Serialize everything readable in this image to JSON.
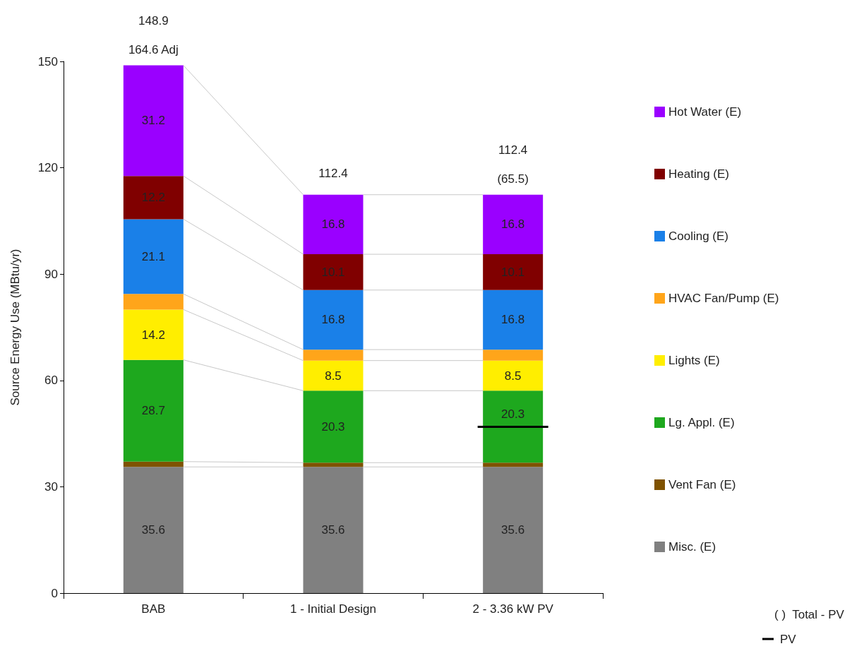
{
  "chart_data": {
    "type": "bar",
    "stacked": true,
    "ylabel": "Source Energy Use (MBtu/yr)",
    "categories": [
      "BAB",
      "1 - Initial Design",
      "2 - 3.36 kW PV"
    ],
    "ylim": [
      0,
      150
    ],
    "yticks": [
      0,
      30,
      60,
      90,
      120,
      150
    ],
    "grid": false,
    "legend": "right",
    "series": [
      {
        "name": "Misc. (E)",
        "color": "#808080",
        "values": [
          35.6,
          35.6,
          35.6
        ],
        "value_labels": [
          "35.6",
          "35.6",
          "35.6"
        ]
      },
      {
        "name": "Vent Fan (E)",
        "color": "#7f5200",
        "values": [
          1.5,
          1.2,
          1.2
        ],
        "value_labels": [
          null,
          null,
          null
        ]
      },
      {
        "name": "Lg. Appl. (E)",
        "color": "#1ea81e",
        "values": [
          28.7,
          20.3,
          20.3
        ],
        "value_labels": [
          "28.7",
          "20.3",
          "20.3"
        ]
      },
      {
        "name": "Lights (E)",
        "color": "#ffee00",
        "values": [
          14.2,
          8.5,
          8.5
        ],
        "value_labels": [
          "14.2",
          "8.5",
          "8.5"
        ]
      },
      {
        "name": "HVAC Fan/Pump (E)",
        "color": "#ffa51a",
        "values": [
          4.4,
          3.1,
          3.1
        ],
        "value_labels": [
          null,
          null,
          null
        ]
      },
      {
        "name": "Cooling (E)",
        "color": "#1a80e8",
        "values": [
          21.1,
          16.8,
          16.8
        ],
        "value_labels": [
          "21.1",
          "16.8",
          "16.8"
        ]
      },
      {
        "name": "Heating (E)",
        "color": "#800000",
        "values": [
          12.2,
          10.1,
          10.1
        ],
        "value_labels": [
          "12.2",
          "10.1",
          "10.1"
        ]
      },
      {
        "name": "Hot Water (E)",
        "color": "#9a00ff",
        "values": [
          31.2,
          16.8,
          16.8
        ],
        "value_labels": [
          "31.2",
          "16.8",
          "16.8"
        ]
      }
    ],
    "ref_lines": [
      {
        "axis": "y",
        "value": 46.9,
        "label": "PV",
        "color": "#000000"
      }
    ],
    "totals": [
      "148.9",
      "112.4",
      "112.4"
    ],
    "annotations": [
      {
        "text": "164.6 Adj",
        "x": "BAB",
        "y": 148.9
      },
      {
        "text": "(65.5)",
        "x": "2 - 3.36 kW PV",
        "y": 112.4
      },
      "( )  Total - PV"
    ]
  }
}
